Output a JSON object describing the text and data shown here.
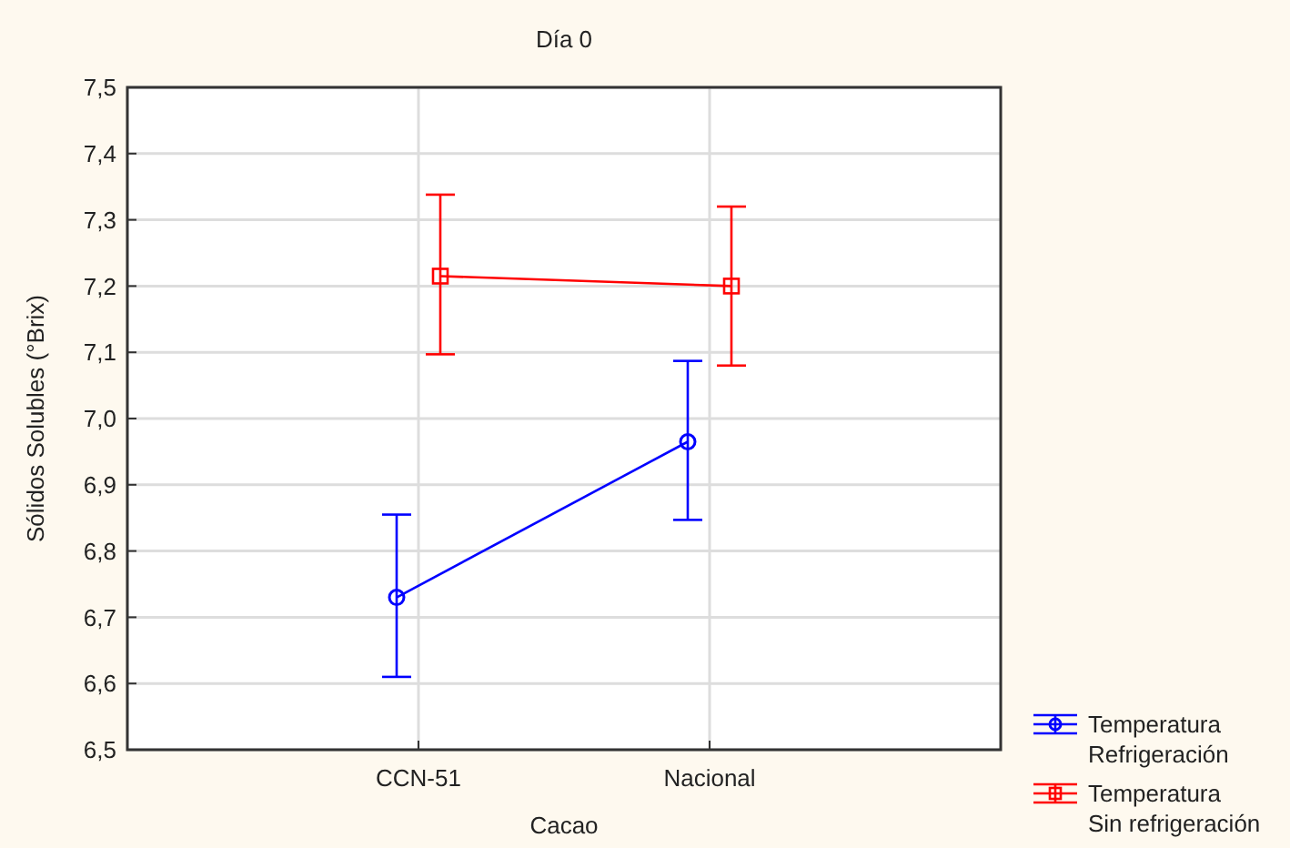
{
  "chart_data": {
    "type": "line",
    "title": "Día 0",
    "xlabel": "Cacao",
    "ylabel": "Sólidos Solubles (°Brix)",
    "categories": [
      "CCN-51",
      "Nacional"
    ],
    "series": [
      {
        "name": "Temperatura Refrigeración",
        "color": "#0000ff",
        "marker": "circle",
        "values": [
          6.73,
          6.965
        ],
        "errors": [
          [
            6.61,
            6.855
          ],
          [
            6.847,
            7.087
          ]
        ]
      },
      {
        "name": "Temperatura Sin refrigeración",
        "color": "#ff0000",
        "marker": "square",
        "values": [
          7.215,
          7.2
        ],
        "errors": [
          [
            7.097,
            7.338
          ],
          [
            7.08,
            7.32
          ]
        ]
      }
    ],
    "ylim": [
      6.5,
      7.5
    ],
    "yticks": [
      {
        "value": 6.5,
        "label": "6,5"
      },
      {
        "value": 6.6,
        "label": "6,6"
      },
      {
        "value": 6.7,
        "label": "6,7"
      },
      {
        "value": 6.8,
        "label": "6,8"
      },
      {
        "value": 6.9,
        "label": "6,9"
      },
      {
        "value": 7.0,
        "label": "7,0"
      },
      {
        "value": 7.1,
        "label": "7,1"
      },
      {
        "value": 7.2,
        "label": "7,2"
      },
      {
        "value": 7.3,
        "label": "7,3"
      },
      {
        "value": 7.4,
        "label": "7,4"
      },
      {
        "value": 7.5,
        "label": "7,5"
      }
    ],
    "grid": true,
    "legend": "bottom right"
  }
}
